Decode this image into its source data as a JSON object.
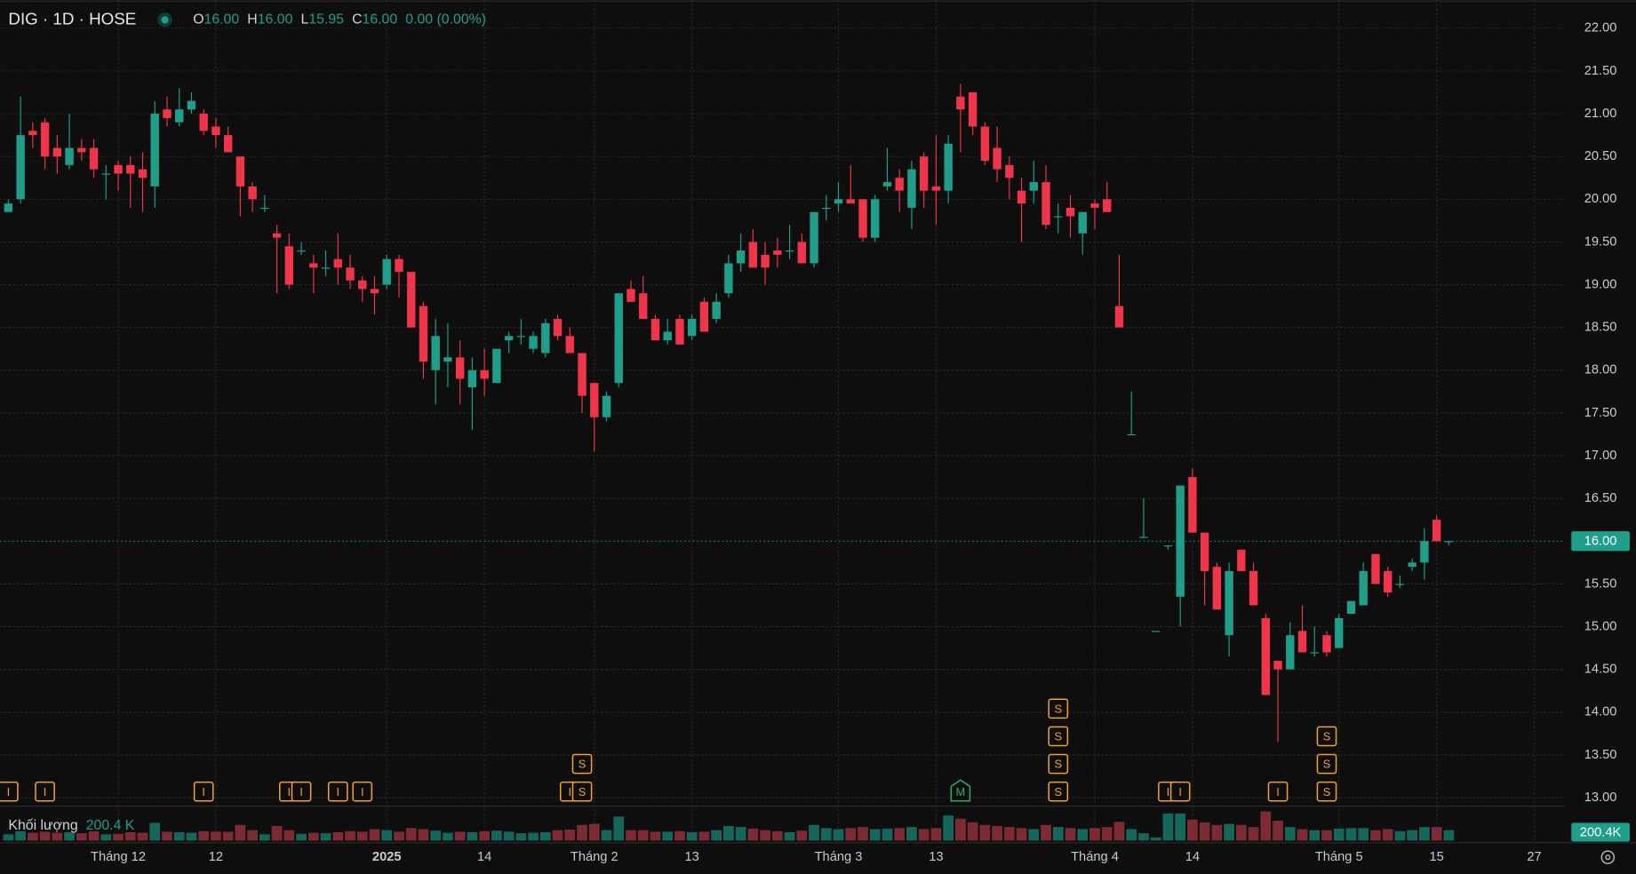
{
  "chart_data": {
    "type": "candlestick",
    "header": {
      "symbol": "DIG · 1D · HOSE",
      "open_label": "O",
      "open": "16.00",
      "high_label": "H",
      "high": "16.00",
      "low_label": "L",
      "low": "15.95",
      "close_label": "C",
      "close": "16.00",
      "change": "0.00 (0.00%)"
    },
    "categories": [
      null,
      null,
      null,
      null,
      null,
      null,
      null,
      null,
      null,
      "Tháng 12",
      null,
      null,
      null,
      null,
      null,
      null,
      null,
      "12",
      null,
      null,
      null,
      null,
      null,
      null,
      null,
      null,
      null,
      null,
      null,
      null,
      null,
      "2025",
      null,
      null,
      null,
      null,
      null,
      null,
      null,
      "14",
      null,
      null,
      null,
      null,
      null,
      null,
      null,
      null,
      "Tháng 2",
      null,
      null,
      null,
      null,
      null,
      null,
      null,
      "13",
      null,
      null,
      null,
      null,
      null,
      null,
      null,
      null,
      null,
      null,
      null,
      "Tháng 3",
      null,
      null,
      null,
      null,
      null,
      null,
      null,
      "13",
      null,
      null,
      null,
      null,
      null,
      null,
      null,
      null,
      null,
      null,
      null,
      null,
      "Tháng 4",
      null,
      null,
      null,
      null,
      null,
      null,
      null,
      "14",
      null,
      null,
      null,
      null,
      null,
      null,
      null,
      null,
      null,
      null,
      null,
      "Tháng 5",
      null,
      null,
      null,
      null,
      null,
      null,
      null,
      "15",
      null,
      null,
      null,
      null,
      null,
      null,
      null,
      "27"
    ],
    "open": [
      19.85,
      20.0,
      20.8,
      20.9,
      20.6,
      20.4,
      20.6,
      20.6,
      20.3,
      20.4,
      20.4,
      20.35,
      20.15,
      21.05,
      20.9,
      21.05,
      21.0,
      20.85,
      20.75,
      20.5,
      20.15,
      19.9,
      19.6,
      19.45,
      19.4,
      19.25,
      19.2,
      19.3,
      19.2,
      19.05,
      18.95,
      19.0,
      19.3,
      19.15,
      18.75,
      18.0,
      18.1,
      18.15,
      17.8,
      18.0,
      17.85,
      18.35,
      18.4,
      18.25,
      18.2,
      18.6,
      18.4,
      18.2,
      17.85,
      17.45,
      17.85,
      18.95,
      18.9,
      18.6,
      18.35,
      18.6,
      18.4,
      18.8,
      18.6,
      18.9,
      19.25,
      19.5,
      19.35,
      19.4,
      19.4,
      19.5,
      19.25,
      19.9,
      19.95,
      20.0,
      20.0,
      19.55,
      20.15,
      20.25,
      19.9,
      20.5,
      20.15,
      20.1,
      21.2,
      21.25,
      20.85,
      20.6,
      20.4,
      20.1,
      20.1,
      20.2,
      19.8,
      19.9,
      19.6,
      19.95,
      20.0,
      18.75,
      17.25,
      16.05,
      14.95,
      15.95,
      15.35,
      16.75,
      16.1,
      15.7,
      14.9,
      15.9,
      15.65,
      15.1,
      14.6,
      14.5,
      14.95,
      14.7,
      14.9,
      14.75,
      15.15,
      15.25,
      15.85,
      15.65,
      15.5,
      15.7,
      15.75,
      16.25,
      16.0,
      null,
      null,
      null,
      null,
      null,
      null,
      null
    ],
    "high": [
      20.0,
      21.2,
      20.9,
      20.95,
      20.75,
      21.0,
      20.7,
      20.7,
      20.4,
      20.45,
      20.5,
      20.55,
      21.15,
      21.2,
      21.3,
      21.25,
      21.05,
      20.95,
      20.85,
      20.5,
      20.2,
      20.05,
      19.7,
      19.6,
      19.5,
      19.35,
      19.4,
      19.6,
      19.35,
      19.1,
      19.1,
      19.35,
      19.35,
      19.15,
      18.8,
      18.6,
      18.55,
      18.35,
      18.15,
      18.25,
      18.25,
      18.45,
      18.6,
      18.45,
      18.6,
      18.65,
      18.5,
      18.2,
      17.85,
      17.75,
      18.9,
      19.05,
      19.1,
      18.65,
      18.6,
      18.65,
      18.65,
      18.85,
      18.9,
      19.35,
      19.6,
      19.65,
      19.5,
      19.55,
      19.7,
      19.6,
      19.85,
      20.05,
      20.2,
      20.4,
      20.0,
      20.05,
      20.6,
      20.35,
      20.45,
      20.55,
      20.75,
      20.75,
      21.35,
      21.25,
      20.9,
      20.85,
      20.5,
      20.25,
      20.45,
      20.4,
      19.95,
      20.05,
      19.85,
      20.0,
      20.2,
      19.35,
      17.75,
      16.5,
      14.95,
      15.95,
      16.65,
      16.85,
      16.1,
      15.75,
      15.75,
      15.9,
      15.75,
      15.15,
      14.6,
      15.05,
      15.25,
      15.0,
      14.95,
      15.15,
      15.3,
      15.75,
      15.85,
      15.7,
      15.6,
      15.8,
      16.15,
      16.3,
      16.0,
      null,
      null,
      null,
      null,
      null,
      null,
      null
    ],
    "low": [
      19.85,
      19.95,
      20.6,
      20.35,
      20.3,
      20.35,
      20.45,
      20.25,
      20.0,
      20.1,
      19.9,
      19.85,
      19.9,
      20.85,
      20.85,
      21.0,
      20.75,
      20.6,
      20.55,
      19.8,
      19.85,
      19.85,
      18.9,
      18.95,
      19.35,
      18.9,
      19.1,
      19.0,
      18.95,
      18.8,
      18.65,
      18.95,
      18.85,
      18.5,
      17.9,
      17.6,
      17.8,
      17.6,
      17.3,
      17.7,
      17.85,
      18.2,
      18.3,
      18.2,
      18.15,
      18.35,
      18.2,
      17.5,
      17.05,
      17.4,
      17.8,
      18.8,
      18.6,
      18.35,
      18.3,
      18.3,
      18.35,
      18.45,
      18.55,
      18.85,
      19.15,
      19.2,
      19.0,
      19.2,
      19.3,
      19.3,
      19.2,
      19.75,
      19.85,
      19.95,
      19.5,
      19.5,
      20.1,
      19.85,
      19.65,
      19.9,
      19.7,
      19.95,
      20.55,
      20.75,
      20.4,
      20.2,
      20.0,
      19.5,
      19.95,
      19.65,
      19.6,
      19.55,
      19.35,
      19.65,
      19.85,
      18.5,
      17.25,
      16.05,
      14.95,
      15.9,
      15.0,
      16.1,
      15.25,
      15.2,
      14.65,
      15.65,
      15.25,
      14.2,
      13.65,
      14.5,
      14.7,
      14.65,
      14.65,
      14.75,
      15.15,
      15.25,
      15.5,
      15.35,
      15.45,
      15.65,
      15.55,
      16.0,
      15.95,
      null,
      null,
      null,
      null,
      null,
      null,
      null
    ],
    "close": [
      19.95,
      20.75,
      20.75,
      20.5,
      20.5,
      20.6,
      20.55,
      20.35,
      20.3,
      20.3,
      20.3,
      20.25,
      21.0,
      20.95,
      21.05,
      21.15,
      20.8,
      20.75,
      20.55,
      20.15,
      20.0,
      19.9,
      19.55,
      19.0,
      19.4,
      19.2,
      19.2,
      19.2,
      19.05,
      18.95,
      18.9,
      19.3,
      19.15,
      18.5,
      18.1,
      18.4,
      18.15,
      17.9,
      18.0,
      17.9,
      18.25,
      18.4,
      18.4,
      18.4,
      18.55,
      18.4,
      18.2,
      17.7,
      17.45,
      17.7,
      18.9,
      18.8,
      18.6,
      18.35,
      18.45,
      18.3,
      18.6,
      18.45,
      18.8,
      19.25,
      19.4,
      19.2,
      19.2,
      19.35,
      19.4,
      19.25,
      19.85,
      19.9,
      20.0,
      19.95,
      19.55,
      20.0,
      20.2,
      20.1,
      20.35,
      20.1,
      20.1,
      20.65,
      21.05,
      20.85,
      20.45,
      20.35,
      20.25,
      19.95,
      20.2,
      19.7,
      19.8,
      19.8,
      19.85,
      19.9,
      19.85,
      18.5,
      17.25,
      16.05,
      14.95,
      15.95,
      16.65,
      16.1,
      15.65,
      15.2,
      15.65,
      15.65,
      15.25,
      14.2,
      14.5,
      14.9,
      14.7,
      14.7,
      14.7,
      15.1,
      15.3,
      15.65,
      15.5,
      15.4,
      15.5,
      15.75,
      16.0,
      16.0,
      16.0,
      null,
      null,
      null,
      null,
      null,
      null,
      null
    ],
    "volume": [
      120,
      180,
      150,
      170,
      150,
      160,
      140,
      180,
      120,
      130,
      160,
      150,
      340,
      170,
      160,
      150,
      180,
      170,
      170,
      300,
      200,
      120,
      280,
      200,
      130,
      150,
      140,
      160,
      180,
      170,
      220,
      200,
      170,
      240,
      220,
      190,
      150,
      170,
      160,
      180,
      190,
      170,
      140,
      150,
      160,
      200,
      210,
      300,
      320,
      200,
      460,
      200,
      200,
      170,
      170,
      180,
      160,
      170,
      200,
      280,
      260,
      230,
      200,
      180,
      160,
      190,
      300,
      240,
      220,
      240,
      260,
      220,
      230,
      240,
      260,
      220,
      240,
      480,
      420,
      350,
      300,
      280,
      260,
      240,
      220,
      300,
      260,
      240,
      220,
      240,
      260,
      360,
      220,
      140,
      60,
      520,
      520,
      400,
      350,
      300,
      320,
      300,
      260,
      560,
      380,
      260,
      220,
      200,
      200,
      230,
      240,
      240,
      200,
      220,
      180,
      200,
      260,
      260,
      200.4,
      null,
      null,
      null,
      null,
      null,
      null,
      null
    ],
    "volume_ylim": [
      0,
      700
    ],
    "volume_name": "Khối lượng",
    "volume_label": "200.4 K",
    "volume_tag": "200.4K",
    "up_color": "#1f9e89",
    "down_color": "#f0344a",
    "volume_up_color": "#15675b",
    "volume_down_color": "#7c2b34",
    "ylim": [
      12.9,
      22.33
    ],
    "yticks": [
      {
        "value": 13,
        "label": "13.00"
      },
      {
        "value": 13.5,
        "label": "13.50"
      },
      {
        "value": 14,
        "label": "14.00"
      },
      {
        "value": 14.5,
        "label": "14.50"
      },
      {
        "value": 15,
        "label": "15.00"
      },
      {
        "value": 15.5,
        "label": "15.50"
      },
      {
        "value": 16,
        "label": "16.00"
      },
      {
        "value": 16.5,
        "label": "16.50"
      },
      {
        "value": 17,
        "label": "17.00"
      },
      {
        "value": 17.5,
        "label": "17.50"
      },
      {
        "value": 18,
        "label": "18.00"
      },
      {
        "value": 18.5,
        "label": "18.50"
      },
      {
        "value": 19,
        "label": "19.00"
      },
      {
        "value": 19.5,
        "label": "19.50"
      },
      {
        "value": 20,
        "label": "20.00"
      },
      {
        "value": 20.5,
        "label": "20.50"
      },
      {
        "value": 21,
        "label": "21.00"
      },
      {
        "value": 21.5,
        "label": "21.50"
      },
      {
        "value": 22,
        "label": "22.00"
      }
    ],
    "last_price": {
      "value": 16,
      "label": "16.00"
    },
    "grid": true,
    "events": [
      {
        "bar": 0,
        "labels": [
          "I"
        ]
      },
      {
        "bar": 3,
        "labels": [
          "I"
        ]
      },
      {
        "bar": 16,
        "labels": [
          "I"
        ]
      },
      {
        "bar": 23,
        "labels": [
          "I"
        ]
      },
      {
        "bar": 24,
        "labels": [
          "I"
        ]
      },
      {
        "bar": 27,
        "labels": [
          "I"
        ]
      },
      {
        "bar": 29,
        "labels": [
          "I"
        ]
      },
      {
        "bar": 46,
        "labels": [
          "I"
        ]
      },
      {
        "bar": 47,
        "labels": [
          "S",
          "S"
        ]
      },
      {
        "bar": 78,
        "labels": [
          "M"
        ]
      },
      {
        "bar": 86,
        "labels": [
          "S",
          "S",
          "S",
          "S"
        ]
      },
      {
        "bar": 95,
        "labels": [
          "I"
        ]
      },
      {
        "bar": 96,
        "labels": [
          "I"
        ]
      },
      {
        "bar": 104,
        "labels": [
          "I"
        ]
      },
      {
        "bar": 108,
        "labels": [
          "S",
          "S",
          "S"
        ]
      }
    ]
  }
}
